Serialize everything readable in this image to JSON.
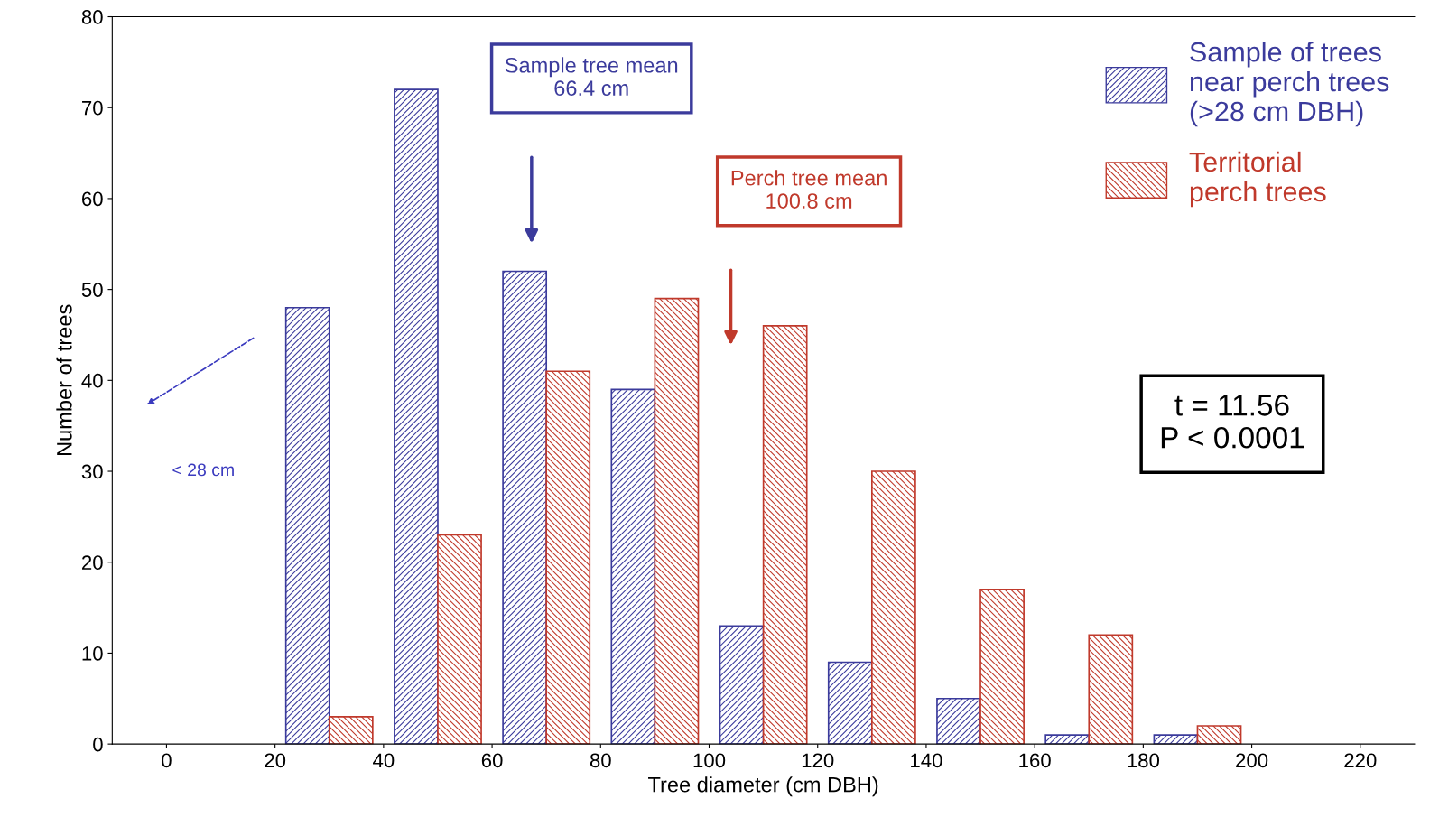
{
  "chart_data": {
    "type": "bar",
    "xlabel": "Tree diameter (cm DBH)",
    "ylabel": "Number of trees",
    "series": [
      {
        "name": "Sample of trees\nnear perch trees\n(>28 cm DBH)",
        "color": "#3b3b9c",
        "x": [
          26,
          46,
          66,
          86,
          106,
          126,
          146,
          166,
          186
        ],
        "values": [
          48,
          72,
          52,
          39,
          13,
          9,
          5,
          1,
          1
        ]
      },
      {
        "name": "Territorial\nperch trees",
        "color": "#c0392b",
        "x": [
          34,
          54,
          74,
          94,
          114,
          134,
          154,
          174,
          194
        ],
        "values": [
          3,
          23,
          41,
          49,
          46,
          30,
          17,
          12,
          2
        ]
      }
    ],
    "annotations": [
      "Sample tree mean\n66.4 cm",
      "Perch tree mean\n100.8 cm",
      "< 28 cm",
      "t = 11.56\nP < 0.0001"
    ],
    "xlim": [
      -10,
      230
    ],
    "xticks": [
      0,
      20,
      40,
      60,
      80,
      100,
      120,
      140,
      160,
      180,
      200,
      220
    ],
    "ylim": [
      0,
      80
    ],
    "yticks": [
      0,
      10,
      20,
      30,
      40,
      50,
      60,
      70,
      80
    ],
    "legend": "top right",
    "grid": false
  }
}
